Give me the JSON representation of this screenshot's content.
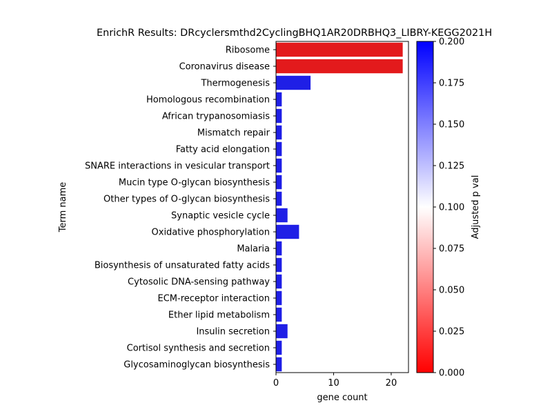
{
  "chart_data": {
    "type": "bar",
    "orientation": "horizontal",
    "title": "EnrichR Results: DRcyclersmthd2CyclingBHQ1AR20DRBHQ3_LIBRY-KEGG2021H",
    "xlabel": "gene count",
    "ylabel": "Term name",
    "xlim": [
      0,
      23
    ],
    "xticks": [
      "0",
      "10",
      "20"
    ],
    "xtick_values": [
      0,
      10,
      20
    ],
    "grid": false,
    "categories": [
      "Ribosome",
      "Coronavirus disease",
      "Thermogenesis",
      "Homologous recombination",
      "African trypanosomiasis",
      "Mismatch repair",
      "Fatty acid elongation",
      "SNARE interactions in vesicular transport",
      "Mucin type O-glycan biosynthesis",
      "Other types of O-glycan biosynthesis",
      "Synaptic vesicle cycle",
      "Oxidative phosphorylation",
      "Malaria",
      "Biosynthesis of unsaturated fatty acids",
      "Cytosolic DNA-sensing pathway",
      "ECM-receptor interaction",
      "Ether lipid metabolism",
      "Insulin secretion",
      "Cortisol synthesis and secretion",
      "Glycosaminoglycan biosynthesis"
    ],
    "values": [
      22,
      22,
      6,
      1,
      1,
      1,
      1,
      1,
      1,
      1,
      2,
      4,
      1,
      1,
      1,
      1,
      1,
      2,
      1,
      1
    ],
    "bar_colors": [
      "#e31a1c",
      "#e31a1c",
      "#1f1fe6",
      "#1f1fe6",
      "#1f1fe6",
      "#1f1fe6",
      "#1f1fe6",
      "#1f1fe6",
      "#1f1fe6",
      "#1f1fe6",
      "#1f1fe6",
      "#1f1fe6",
      "#1f1fe6",
      "#1f1fe6",
      "#1f1fe6",
      "#1f1fe6",
      "#1f1fe6",
      "#1f1fe6",
      "#1f1fe6",
      "#1f1fe6"
    ],
    "colorbar": {
      "label": "Adjusted p val",
      "range": [
        0,
        0.2
      ],
      "ticks": [
        "0.000",
        "0.025",
        "0.050",
        "0.075",
        "0.100",
        "0.125",
        "0.150",
        "0.175",
        "0.200"
      ],
      "tick_values": [
        0,
        0.025,
        0.05,
        0.075,
        0.1,
        0.125,
        0.15,
        0.175,
        0.2
      ],
      "colors": [
        "#ff0000",
        "#ffffff",
        "#0000ff"
      ]
    }
  }
}
